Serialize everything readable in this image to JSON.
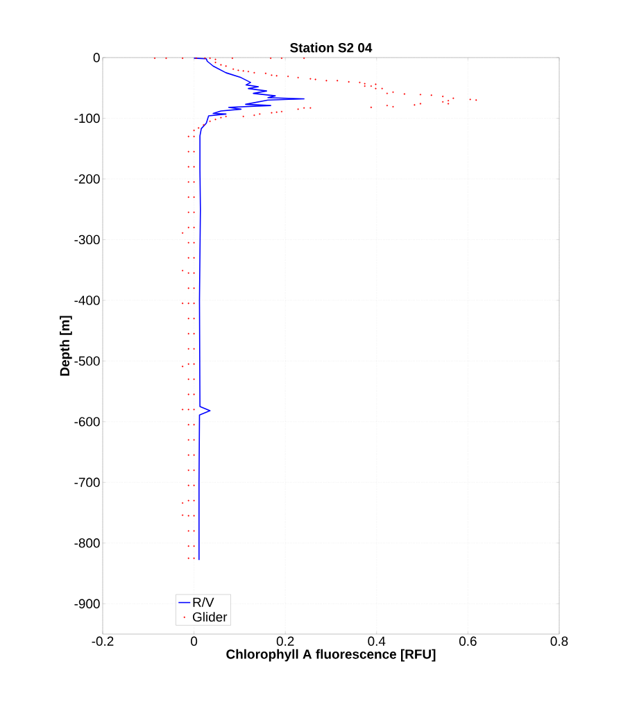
{
  "chart_data": {
    "type": "line",
    "title": "Station S2 04",
    "xlabel": "Chlorophyll A fluorescence [RFU]",
    "ylabel": "Depth [m]",
    "xlim": [
      -0.2,
      0.8
    ],
    "ylim": [
      -950,
      0
    ],
    "xticks": [
      -0.2,
      0,
      0.2,
      0.4,
      0.6,
      0.8
    ],
    "yticks": [
      0,
      -100,
      -200,
      -300,
      -400,
      -500,
      -600,
      -700,
      -800,
      -900
    ],
    "grid": true,
    "legend": "bottom left",
    "series": [
      {
        "name": "R/V",
        "color": "#0000ff",
        "x": [
          0.0,
          0.027,
          0.029,
          0.042,
          0.07,
          0.103,
          0.124,
          0.114,
          0.141,
          0.119,
          0.159,
          0.13,
          0.178,
          0.162,
          0.241,
          0.162,
          0.113,
          0.168,
          0.076,
          0.103,
          0.059,
          0.042,
          0.07,
          0.032,
          0.027,
          0.016,
          0.013,
          0.013,
          0.014,
          0.012,
          0.013,
          0.035,
          0.012,
          0.011,
          0.011
        ],
        "values": [
          -1,
          -2,
          -6,
          -14,
          -25,
          -33,
          -41,
          -45,
          -48,
          -51,
          -55,
          -59,
          -63,
          -66,
          -68,
          -70,
          -77,
          -79,
          -82,
          -85,
          -88,
          -92,
          -93,
          -96,
          -108,
          -117,
          -129,
          -185,
          -250,
          -400,
          -575,
          -582,
          -589,
          -700,
          -828
        ]
      },
      {
        "name": "Glider",
        "type": "scatter",
        "color": "#ff0000",
        "x": [
          -0.086,
          -0.061,
          -0.025,
          0.005,
          0.024,
          0.035,
          0.084,
          0.168,
          0.192,
          0.241,
          0.047,
          0.047,
          0.059,
          0.07,
          0.086,
          0.097,
          0.108,
          0.119,
          0.132,
          0.157,
          0.17,
          0.181,
          0.206,
          0.228,
          0.255,
          0.266,
          0.29,
          0.314,
          0.339,
          0.363,
          0.374,
          0.374,
          0.388,
          0.398,
          0.398,
          0.412,
          0.423,
          0.436,
          0.461,
          0.496,
          0.52,
          0.545,
          0.545,
          0.557,
          0.568,
          0.605,
          0.618,
          0.388,
          0.423,
          0.436,
          0.483,
          0.496,
          0.557,
          0.241,
          0.255,
          0.228,
          0.192,
          0.181,
          0.17,
          0.144,
          0.132,
          0.108,
          0.07,
          0.059,
          0.047,
          0.035,
          0.021,
          0.01,
          0.0,
          -0.025,
          -0.025,
          -0.025,
          -0.025,
          -0.025,
          -0.025,
          -0.025,
          -0.012,
          -0.012,
          -0.012,
          -0.012,
          -0.012,
          -0.012,
          -0.012,
          -0.012,
          -0.012,
          -0.012,
          -0.012,
          -0.012,
          -0.012,
          -0.012,
          -0.012,
          -0.012,
          -0.012,
          -0.012,
          -0.012,
          -0.012,
          -0.012,
          -0.012,
          -0.012,
          -0.012,
          -0.012,
          -0.012,
          -0.012,
          -0.012,
          -0.012,
          0.0,
          0.0,
          0.0,
          0.0,
          0.0,
          0.0,
          0.0,
          0.0,
          0.0,
          0.0,
          0.0,
          0.0,
          0.0,
          0.0,
          0.0,
          0.0,
          0.0,
          0.0,
          0.0,
          0.0,
          0.0,
          0.0,
          0.0,
          0.0,
          0.0,
          0.0,
          0.0,
          0.0,
          0.0
        ],
        "values": [
          -1,
          -1,
          -1,
          -1,
          -1,
          -1,
          -1,
          -1,
          -1,
          -1,
          -3,
          -8,
          -12,
          -14,
          -19,
          -21,
          -22,
          -23,
          -25,
          -26,
          -29,
          -30,
          -31,
          -33,
          -35,
          -36,
          -38,
          -38,
          -40,
          -41,
          -43,
          -47,
          -47,
          -44,
          -51,
          -51,
          -59,
          -57,
          -60,
          -61,
          -62,
          -64,
          -73,
          -71,
          -67,
          -69,
          -70,
          -82,
          -79,
          -81,
          -78,
          -76,
          -76,
          -83,
          -83,
          -85,
          -89,
          -90,
          -91,
          -93,
          -95,
          -97,
          -97,
          -99,
          -102,
          -105,
          -111,
          -116,
          -120,
          -289,
          -351,
          -405,
          -509,
          -580,
          -734,
          -754,
          -130,
          -155,
          -180,
          -205,
          -230,
          -255,
          -280,
          -305,
          -330,
          -355,
          -380,
          -405,
          -430,
          -455,
          -480,
          -505,
          -530,
          -555,
          -580,
          -605,
          -630,
          -655,
          -680,
          -705,
          -730,
          -755,
          -780,
          -805,
          -825,
          -130,
          -155,
          -180,
          -205,
          -230,
          -255,
          -280,
          -305,
          -330,
          -355,
          -380,
          -405,
          -430,
          -455,
          -480,
          -505,
          -530,
          -555,
          -580,
          -605,
          -630,
          -655,
          -680,
          -705,
          -730,
          -755,
          -780,
          -805,
          -825
        ]
      }
    ]
  }
}
